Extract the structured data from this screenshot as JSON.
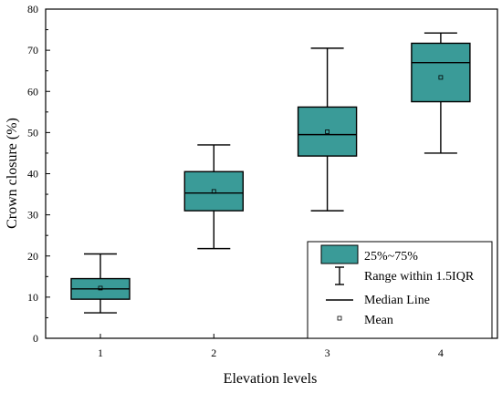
{
  "chart_data": {
    "type": "box",
    "title": "",
    "xlabel": "Elevation levels",
    "ylabel": "Crown closure (%)",
    "ylim": [
      0,
      80
    ],
    "yticks": [
      0,
      10,
      20,
      30,
      40,
      50,
      60,
      70,
      80
    ],
    "grid": false,
    "box_color": "#3a9b98",
    "categories": [
      "1",
      "2",
      "3",
      "4"
    ],
    "boxes": [
      {
        "category": "1",
        "whisker_low": 6.2,
        "q1": 9.5,
        "median": 12.0,
        "q3": 14.5,
        "whisker_high": 20.5,
        "mean": 12.2
      },
      {
        "category": "2",
        "whisker_low": 21.8,
        "q1": 31.0,
        "median": 35.3,
        "q3": 40.5,
        "whisker_high": 47.0,
        "mean": 35.7
      },
      {
        "category": "3",
        "whisker_low": 31.0,
        "q1": 44.3,
        "median": 49.5,
        "q3": 56.2,
        "whisker_high": 70.5,
        "mean": 50.2
      },
      {
        "category": "4",
        "whisker_low": 45.0,
        "q1": 57.5,
        "median": 67.0,
        "q3": 71.7,
        "whisker_high": 74.2,
        "mean": 63.4
      }
    ],
    "legend": {
      "position": "bottom-right",
      "items": [
        {
          "key": "box",
          "label": "25%~75%"
        },
        {
          "key": "range",
          "label": "Range within 1.5IQR"
        },
        {
          "key": "median",
          "label": "Median Line"
        },
        {
          "key": "mean",
          "label": "Mean"
        }
      ]
    }
  }
}
